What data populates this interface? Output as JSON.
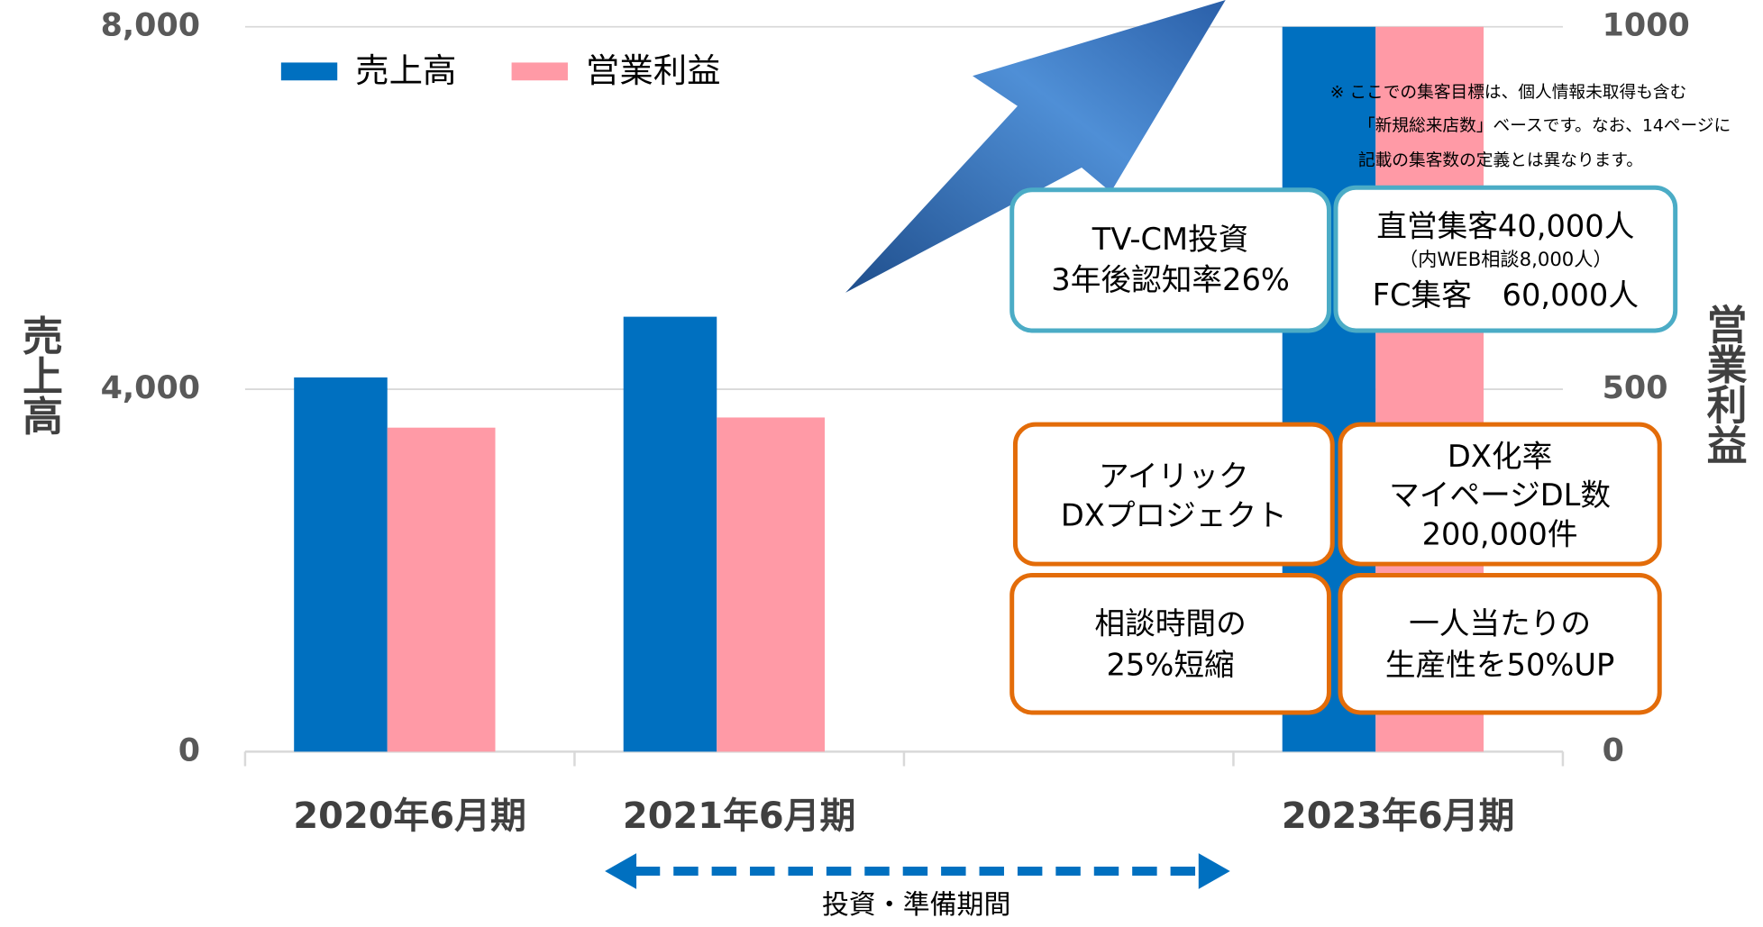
{
  "chart_data": {
    "type": "bar",
    "categories": [
      "2020年6月期",
      "2021年6月期",
      null,
      "2023年6月期"
    ],
    "series": [
      {
        "name": "売上高",
        "color": "#0070c0",
        "values": [
          4130,
          4800,
          null,
          8000
        ]
      },
      {
        "name": "営業利益",
        "color": "#ff9aa6",
        "axis": "y2",
        "values": [
          447,
          461,
          null,
          1000
        ]
      }
    ],
    "ylabel": "売上高",
    "y2label": "営業利益",
    "ylim": [
      0,
      8000
    ],
    "yticks": [
      {
        "value": 0,
        "label": "0"
      },
      {
        "value": 4000,
        "label": "4,000"
      },
      {
        "value": 8000,
        "label": "8,000"
      }
    ],
    "y2lim": [
      0,
      1000
    ],
    "y2ticks": [
      0,
      500,
      1000
    ],
    "grid": true,
    "legend": "top-left",
    "note": [
      "※ ここでの集客目標は、個人情報未取得も含む",
      "「新規総来店数」ベースです。なお、14ページに",
      "記載の集客数の定義とは異なります。"
    ],
    "boxes": [
      [
        "TV-CM投資",
        "3年後認知率26%"
      ],
      [
        "直営集客40,000人",
        "（内WEB相談8,000人）",
        "FC集客　60,000人"
      ],
      [
        "アイリック",
        "DXプロジェクト"
      ],
      [
        "DX化率",
        "マイページDL数",
        "200,000件"
      ],
      [
        "相談時間の",
        "25%短縮"
      ],
      [
        "一人当たりの",
        "生産性を50%UP"
      ]
    ],
    "period_label": "投資・準備期間"
  }
}
